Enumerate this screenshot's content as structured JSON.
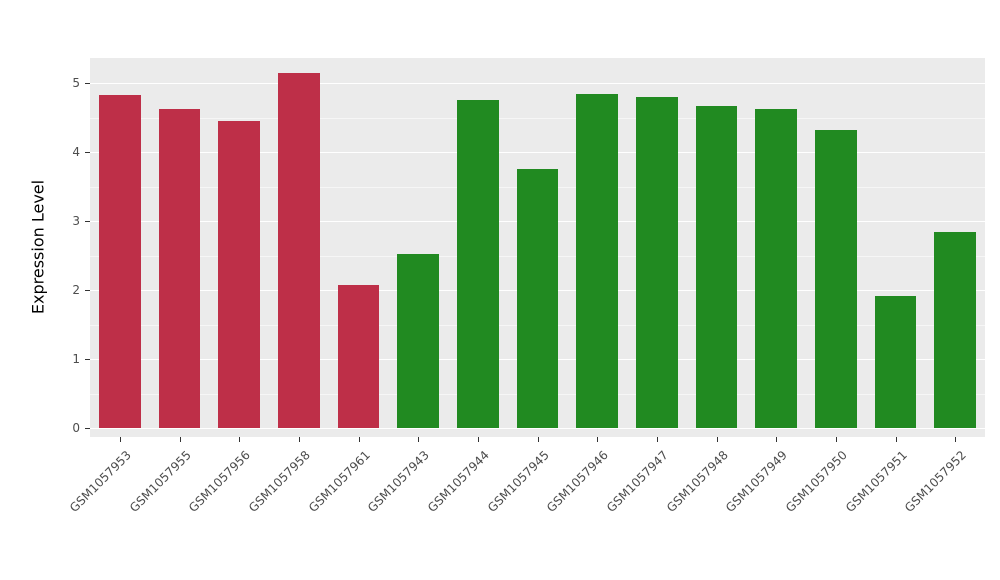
{
  "chart_data": {
    "type": "bar",
    "title": "",
    "xlabel": "",
    "ylabel": "Expression Level",
    "categories": [
      "GSM1057953",
      "GSM1057955",
      "GSM1057956",
      "GSM1057958",
      "GSM1057961",
      "GSM1057943",
      "GSM1057944",
      "GSM1057945",
      "GSM1057946",
      "GSM1057947",
      "GSM1057948",
      "GSM1057949",
      "GSM1057950",
      "GSM1057951",
      "GSM1057952"
    ],
    "values": [
      4.83,
      4.63,
      4.45,
      5.15,
      2.07,
      2.52,
      4.76,
      3.76,
      4.85,
      4.8,
      4.67,
      4.63,
      4.33,
      1.92,
      2.84
    ],
    "bar_colors": [
      "#BE2F48",
      "#BE2F48",
      "#BE2F48",
      "#BE2F48",
      "#BE2F48",
      "#218A21",
      "#218A21",
      "#218A21",
      "#218A21",
      "#218A21",
      "#218A21",
      "#218A21",
      "#218A21",
      "#218A21",
      "#218A21"
    ],
    "yticks": [
      "0",
      "1",
      "2",
      "3",
      "4",
      "5"
    ],
    "ytick_values": [
      0,
      1,
      2,
      3,
      4,
      5
    ],
    "minor_tick_values": [
      0.5,
      1.5,
      2.5,
      3.5,
      4.5
    ],
    "ylim": [
      -0.13,
      5.37
    ],
    "grid": true,
    "legend_position": "none",
    "panel_background": "#EBEBEB",
    "gridline_color": "#FFFFFF",
    "bar_width_fraction": 0.7
  }
}
